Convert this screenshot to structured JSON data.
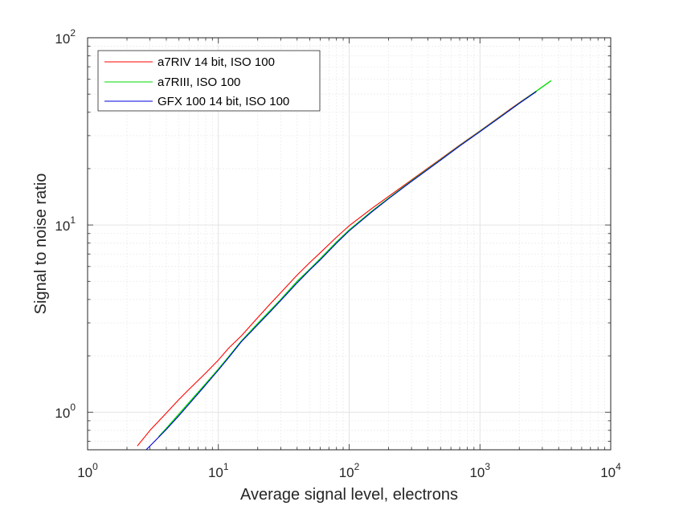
{
  "chart_data": {
    "type": "line",
    "xlabel": "Average signal level, electrons",
    "ylabel": "Signal to noise ratio",
    "xscale": "log",
    "yscale": "log",
    "xlim": [
      1,
      10000
    ],
    "ylim": [
      0.63,
      100
    ],
    "grid": "on (major and minor)",
    "legend_position": "top-left",
    "x_tick_labels": [
      {
        "base": "10",
        "exp": "0",
        "value": 1
      },
      {
        "base": "10",
        "exp": "1",
        "value": 10
      },
      {
        "base": "10",
        "exp": "2",
        "value": 100
      },
      {
        "base": "10",
        "exp": "3",
        "value": 1000
      },
      {
        "base": "10",
        "exp": "4",
        "value": 10000
      }
    ],
    "y_tick_labels": [
      {
        "base": "10",
        "exp": "0",
        "value": 1
      },
      {
        "base": "10",
        "exp": "1",
        "value": 10
      },
      {
        "base": "10",
        "exp": "2",
        "value": 100
      }
    ],
    "series": [
      {
        "name": "a7RIV 14 bit, ISO 100",
        "color": "#ff0000",
        "x": [
          2.4,
          3,
          4,
          5,
          6,
          8,
          10,
          12,
          15,
          20,
          25,
          30,
          40,
          50,
          60,
          80,
          100,
          150,
          200,
          300,
          500,
          700,
          1000,
          1500,
          2000,
          2700
        ],
        "y": [
          0.66,
          0.8,
          0.99,
          1.17,
          1.33,
          1.62,
          1.9,
          2.2,
          2.56,
          3.2,
          3.8,
          4.35,
          5.4,
          6.3,
          7.1,
          8.6,
          9.9,
          12.3,
          14.2,
          17.4,
          22.5,
          26.7,
          31.8,
          39,
          45,
          52
        ]
      },
      {
        "name": "a7RIII, ISO 100",
        "color": "#00dd00",
        "x": [
          3.5,
          4,
          5,
          6,
          8,
          10,
          12,
          15,
          20,
          25,
          30,
          40,
          50,
          60,
          80,
          100,
          150,
          200,
          300,
          500,
          700,
          1000,
          1500,
          2000,
          2700,
          3500
        ],
        "y": [
          0.74,
          0.82,
          0.98,
          1.13,
          1.42,
          1.7,
          1.98,
          2.4,
          2.98,
          3.5,
          4.0,
          5.0,
          5.8,
          6.6,
          8.1,
          9.4,
          11.9,
          13.9,
          17.2,
          22.3,
          26.5,
          31.6,
          38.7,
          44.7,
          51.9,
          59
        ]
      },
      {
        "name": "GFX 100 14 bit, ISO 100",
        "color": "#0000dd",
        "x": [
          2.8,
          3,
          4,
          5,
          6,
          8,
          10,
          12,
          15,
          20,
          25,
          30,
          40,
          50,
          60,
          80,
          100,
          150,
          200,
          300,
          500,
          700,
          1000,
          1500,
          2000,
          2700
        ],
        "y": [
          0.63,
          0.66,
          0.81,
          0.96,
          1.11,
          1.4,
          1.68,
          1.96,
          2.38,
          2.93,
          3.45,
          3.95,
          4.9,
          5.75,
          6.5,
          8.0,
          9.3,
          11.8,
          13.8,
          17.1,
          22.2,
          26.4,
          31.5,
          38.6,
          44.6,
          51.6
        ]
      }
    ]
  }
}
